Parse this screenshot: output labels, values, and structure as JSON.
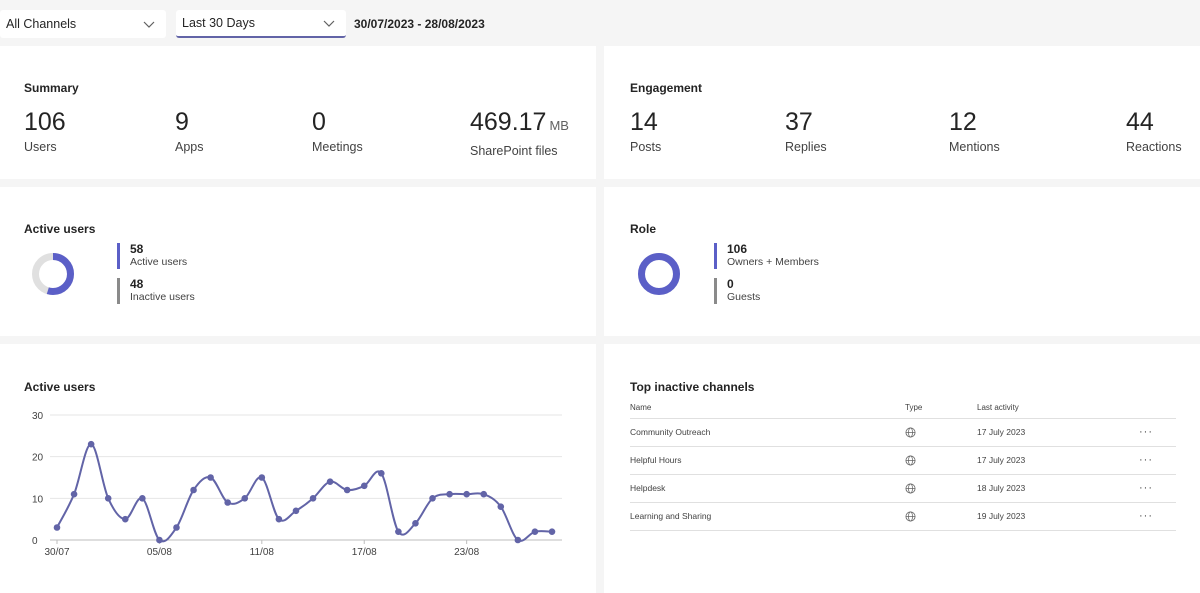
{
  "filters": {
    "channel_label": "All Channels",
    "range_label": "Last 30 Days",
    "date_range": "30/07/2023 - 28/08/2023"
  },
  "summary": {
    "title": "Summary",
    "users": {
      "value": "106",
      "label": "Users"
    },
    "apps": {
      "value": "9",
      "label": "Apps"
    },
    "meetings": {
      "value": "0",
      "label": "Meetings"
    },
    "files": {
      "value": "469.17",
      "unit": "MB",
      "label": "SharePoint files"
    }
  },
  "engagement": {
    "title": "Engagement",
    "posts": {
      "value": "14",
      "label": "Posts"
    },
    "replies": {
      "value": "37",
      "label": "Replies"
    },
    "mentions": {
      "value": "12",
      "label": "Mentions"
    },
    "reactions": {
      "value": "44",
      "label": "Reactions"
    }
  },
  "active_users_card": {
    "title": "Active users",
    "active": {
      "value": "58",
      "label": "Active users"
    },
    "inactive": {
      "value": "48",
      "label": "Inactive users"
    }
  },
  "role_card": {
    "title": "Role",
    "members": {
      "value": "106",
      "label": "Owners + Members"
    },
    "guests": {
      "value": "0",
      "label": "Guests"
    }
  },
  "colors": {
    "accent": "#5b5fc7",
    "line": "#6264a7",
    "donut_track": "#e0e0e0",
    "inactive_bar": "#8a8a8a"
  },
  "chart_title": "Active users",
  "chart_data": {
    "type": "line",
    "title": "Active users",
    "x_tick_labels": [
      "30/07",
      "05/08",
      "11/08",
      "17/08",
      "23/08"
    ],
    "x_tick_index": [
      0,
      6,
      12,
      18,
      24
    ],
    "ylim": [
      0,
      30
    ],
    "y_ticks": [
      0,
      10,
      20,
      30
    ],
    "grid": true,
    "series": [
      {
        "values": [
          3,
          11,
          23,
          10,
          5,
          10,
          0,
          3,
          12,
          15,
          9,
          10,
          15,
          5,
          7,
          10,
          14,
          12,
          13,
          16,
          2,
          4,
          10,
          11,
          11,
          11,
          8,
          0,
          2,
          2
        ]
      }
    ]
  },
  "top_inactive": {
    "title": "Top inactive channels",
    "columns": [
      "Name",
      "Type",
      "Last activity"
    ],
    "rows": [
      {
        "name": "Community Outreach",
        "type_icon": "globe-icon",
        "last": "17 July 2023"
      },
      {
        "name": "Helpful Hours",
        "type_icon": "globe-icon",
        "last": "17 July 2023"
      },
      {
        "name": "Helpdesk",
        "type_icon": "globe-icon",
        "last": "18 July 2023"
      },
      {
        "name": "Learning and Sharing",
        "type_icon": "globe-icon",
        "last": "19 July 2023"
      }
    ],
    "more_glyph": "···"
  }
}
